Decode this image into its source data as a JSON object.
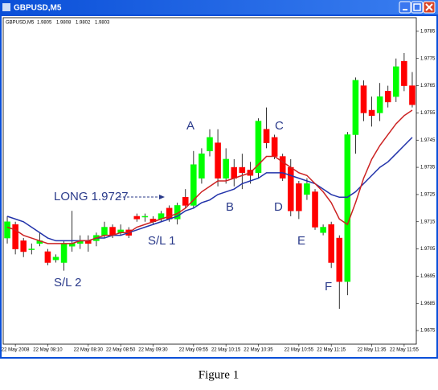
{
  "chart_data": {
    "type": "candlestick",
    "title": "GBPUSD,M5",
    "last_ohlc": [
      1.9805,
      1.9808,
      1.9802,
      1.9803
    ],
    "categories": [
      null,
      "22 May 2008",
      null,
      null,
      null,
      "22 May 08:10",
      null,
      null,
      null,
      null,
      "22 May 08:30",
      null,
      null,
      null,
      "22 May 08:50",
      null,
      null,
      null,
      "22 May 09:30",
      null,
      null,
      null,
      null,
      "22 May 09:55",
      null,
      null,
      null,
      "22 May 10:15",
      null,
      null,
      null,
      "22 May 10:35",
      null,
      null,
      null,
      null,
      "22 May 10:55",
      null,
      null,
      null,
      "22 May 11:15",
      null,
      null,
      null,
      null,
      "22 May 11:35",
      null,
      null,
      null,
      "22 May 11:55",
      null
    ],
    "open": [
      1.9709,
      1.9714,
      1.9708,
      1.9705,
      1.9707,
      1.9704,
      1.9701,
      1.97,
      1.9706,
      1.9707,
      1.9708,
      1.9708,
      1.971,
      1.9713,
      1.9711,
      1.9712,
      1.9717,
      1.9717,
      1.9716,
      1.9716,
      1.972,
      1.9716,
      1.9724,
      1.9721,
      1.9731,
      1.9741,
      1.9744,
      1.9731,
      1.9735,
      1.9735,
      1.9734,
      1.9733,
      1.9749,
      1.9746,
      1.9739,
      1.9735,
      1.9729,
      1.9725,
      1.9726,
      1.9711,
      1.9714,
      1.9709,
      1.9693,
      1.9747,
      1.9765,
      1.9756,
      1.9755,
      1.9763,
      1.9761,
      1.9774,
      1.9765
    ],
    "high": [
      1.9717,
      1.9715,
      1.9709,
      1.9707,
      1.9711,
      1.9705,
      1.9703,
      1.9708,
      1.9719,
      1.971,
      1.971,
      1.9711,
      1.9715,
      1.9714,
      1.9714,
      1.9713,
      1.9718,
      1.9718,
      1.9717,
      1.9719,
      1.9721,
      1.9722,
      1.9727,
      1.9741,
      1.9742,
      1.9749,
      1.9749,
      1.9742,
      1.9738,
      1.974,
      1.9737,
      1.9753,
      1.9757,
      1.9747,
      1.974,
      1.9738,
      1.973,
      1.9731,
      1.9727,
      1.9714,
      1.9715,
      1.971,
      1.9748,
      1.9768,
      1.9767,
      1.9761,
      1.9766,
      1.9765,
      1.9775,
      1.9777,
      1.977
    ],
    "low": [
      1.9707,
      1.9703,
      1.9702,
      1.9703,
      1.9706,
      1.9699,
      1.97,
      1.9697,
      1.9704,
      1.9705,
      1.9704,
      1.9706,
      1.9709,
      1.9709,
      1.971,
      1.9709,
      1.9715,
      1.9715,
      1.9714,
      1.9715,
      1.9715,
      1.9714,
      1.972,
      1.972,
      1.9729,
      1.9739,
      1.9728,
      1.9729,
      1.9728,
      1.9727,
      1.9729,
      1.9731,
      1.9742,
      1.9738,
      1.973,
      1.9717,
      1.9716,
      1.9723,
      1.9712,
      1.971,
      1.9698,
      1.9683,
      1.9688,
      1.974,
      1.9752,
      1.975,
      1.9752,
      1.9757,
      1.9759,
      1.9763,
      1.9757
    ],
    "close": [
      1.9715,
      1.9705,
      1.9704,
      1.9705,
      1.9708,
      1.97,
      1.9702,
      1.9707,
      1.9707,
      1.9708,
      1.9707,
      1.971,
      1.9713,
      1.971,
      1.9712,
      1.971,
      1.9716,
      1.9717,
      1.9715,
      1.9718,
      1.9716,
      1.9721,
      1.9721,
      1.9736,
      1.974,
      1.9746,
      1.9731,
      1.9738,
      1.9731,
      1.9733,
      1.9732,
      1.9752,
      1.9744,
      1.9739,
      1.9731,
      1.9719,
      1.9719,
      1.9729,
      1.9713,
      1.9713,
      1.97,
      1.9693,
      1.9747,
      1.9767,
      1.9755,
      1.9754,
      1.9761,
      1.9759,
      1.9772,
      1.9765,
      1.9758
    ],
    "up_color": "#00ff00",
    "down_color": "#ff0000",
    "lines": [
      {
        "color": "#2233aa",
        "values": [
          1.9717,
          1.9716,
          1.9715,
          1.9713,
          1.9711,
          1.9709,
          1.9708,
          1.9708,
          1.9708,
          1.9708,
          1.9708,
          1.9709,
          1.9709,
          1.971,
          1.971,
          1.9711,
          1.9712,
          1.9713,
          1.9714,
          1.9715,
          1.9716,
          1.9717,
          1.9719,
          1.972,
          1.9722,
          1.9723,
          1.9725,
          1.9726,
          1.9727,
          1.9729,
          1.973,
          1.9731,
          1.9733,
          1.9733,
          1.9733,
          1.9732,
          1.9731,
          1.973,
          1.9729,
          1.9727,
          1.9725,
          1.9724,
          1.9724,
          1.9726,
          1.9729,
          1.9732,
          1.9735,
          1.9737,
          1.974,
          1.9743,
          1.9746
        ]
      },
      {
        "color": "#cc2222",
        "values": [
          1.9713,
          1.9712,
          1.971,
          1.9709,
          1.9708,
          1.9707,
          1.9707,
          1.9707,
          1.9707,
          1.9708,
          1.9708,
          1.9709,
          1.971,
          1.971,
          1.9711,
          1.9711,
          1.9713,
          1.9714,
          1.9715,
          1.9716,
          1.9717,
          1.9718,
          1.972,
          1.9723,
          1.9726,
          1.9728,
          1.973,
          1.973,
          1.9731,
          1.9732,
          1.9733,
          1.9736,
          1.9739,
          1.9739,
          1.9737,
          1.9735,
          1.9733,
          1.9732,
          1.9729,
          1.9726,
          1.9722,
          1.9716,
          1.9714,
          1.9722,
          1.9731,
          1.9738,
          1.9743,
          1.9747,
          1.9751,
          1.9754,
          1.9756
        ]
      }
    ],
    "ylim": [
      1.967,
      1.979
    ],
    "yticks": [
      1.9785,
      1.9775,
      1.9765,
      1.9755,
      1.9745,
      1.9735,
      1.9725,
      1.9715,
      1.9705,
      1.9695,
      1.9685,
      1.9675
    ],
    "annotations": [
      "A",
      "B",
      "C",
      "D",
      "E",
      "F",
      "LONG 1.9727",
      "S/L 1",
      "S/L 2"
    ]
  },
  "caption": "Figure 1"
}
